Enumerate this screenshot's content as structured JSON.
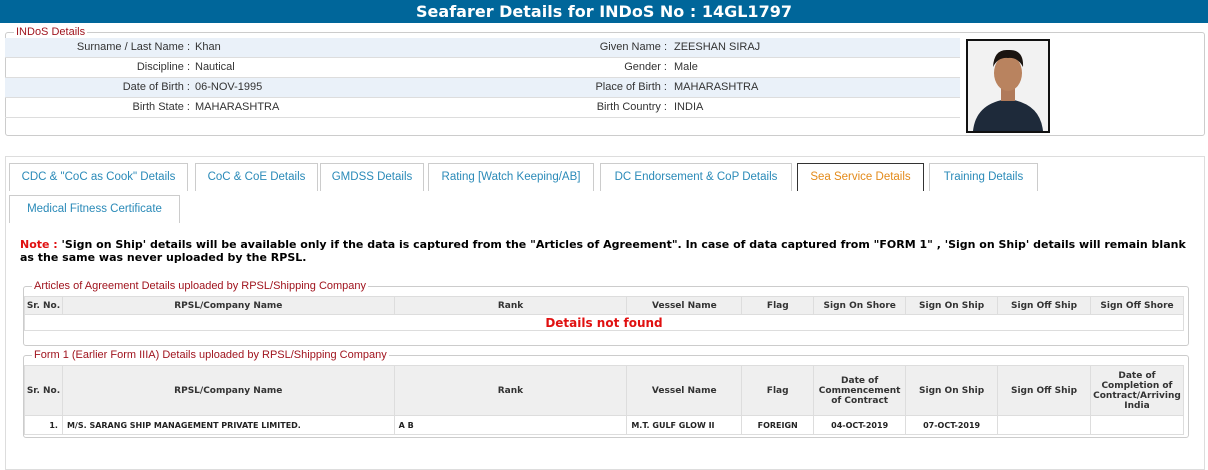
{
  "header": {
    "title": "Seafarer Details for INDoS No : 14GL1797"
  },
  "indos": {
    "legend": "INDoS Details",
    "rows": [
      {
        "l1": "Surname / Last Name :",
        "v1": "Khan",
        "l2": "Given Name :",
        "v2": "ZEESHAN SIRAJ"
      },
      {
        "l1": "Discipline :",
        "v1": "Nautical",
        "l2": "Gender :",
        "v2": "Male"
      },
      {
        "l1": "Date of Birth :",
        "v1": "06-NOV-1995",
        "l2": "Place of Birth :",
        "v2": "MAHARASHTRA"
      },
      {
        "l1": "Birth State :",
        "v1": "MAHARASHTRA",
        "l2": "Birth Country :",
        "v2": "INDIA"
      }
    ]
  },
  "tabs": [
    "CDC & \"CoC as Cook\" Details",
    "CoC & CoE Details",
    "GMDSS Details",
    "Rating [Watch Keeping/AB]",
    "DC Endorsement & CoP Details",
    "Sea Service Details",
    "Training Details",
    "Medical Fitness Certificate"
  ],
  "active_tab": "Sea Service Details",
  "note": {
    "prefix": "Note :",
    "text": " 'Sign on Ship' details will be available only if the data is captured from the \"Articles of Agreement\". In case of data captured from \"FORM 1\" , 'Sign on Ship' details will remain blank as the same was never uploaded by the RPSL."
  },
  "aoa": {
    "legend": "Articles of Agreement Details uploaded by RPSL/Shipping Company",
    "headers": [
      "Sr. No.",
      "RPSL/Company Name",
      "Rank",
      "Vessel Name",
      "Flag",
      "Sign On Shore",
      "Sign On Ship",
      "Sign Off Ship",
      "Sign Off Shore"
    ],
    "empty": "Details not found"
  },
  "form1": {
    "legend": "Form 1 (Earlier Form IIIA) Details uploaded by RPSL/Shipping Company",
    "headers": [
      "Sr. No.",
      "RPSL/Company Name",
      "Rank",
      "Vessel Name",
      "Flag",
      "Date of Commencement of Contract",
      "Sign On Ship",
      "Sign Off Ship",
      "Date of Completion of Contract/Arriving India"
    ],
    "rows": [
      [
        "1.",
        "M/S. SARANG SHIP MANAGEMENT PRIVATE LIMITED.",
        "A B",
        "M.T. GULF GLOW II",
        "FOREIGN",
        "04-OCT-2019",
        "07-OCT-2019",
        "",
        ""
      ]
    ]
  },
  "colors": {
    "header": "#00669a",
    "legend": "#a0141e",
    "tab_text": "#2a8ab8",
    "active_tab": "#e38a1a",
    "alert": "#e01010"
  }
}
